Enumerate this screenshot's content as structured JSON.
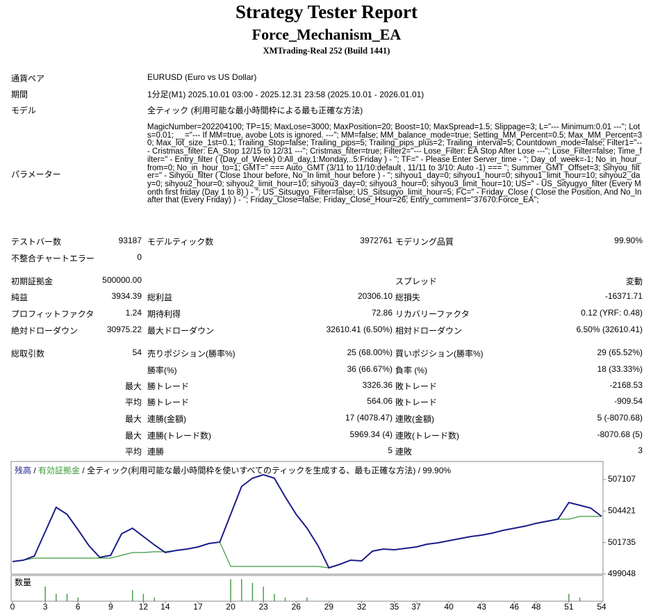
{
  "header": {
    "title": "Strategy Tester Report",
    "ea": "Force_Mechanism_EA",
    "server": "XMTrading-Real 252 (Build 1441)"
  },
  "info": [
    {
      "label": "通貨ペア",
      "value": "EURUSD (Euro vs US Dollar)"
    },
    {
      "label": "期間",
      "value": "1分足(M1) 2025.10.01 03:00 - 2025.12.31 23:58 (2025.10.01 - 2026.01.01)"
    },
    {
      "label": "モデル",
      "value": "全ティック (利用可能な最小時間枠による最も正確な方法)"
    }
  ],
  "parameters": {
    "label": "パラメーター",
    "value": "MagicNumber=202204100; TP=15; MaxLose=3000; MaxPosition=20; Boost=10; MaxSpread=1.5; Slippage=3; L=\"--- Minimum:0.01 ---\"; Lots=0.01; __=\"--- If MM=true, avobe Lots is ignored. ---\"; MM=false; MM_balance_mode=true; Setting_MM_Percent=0.5; Max_MM_Percent=30; Max_lot_size_1st=0.1; Trailing_Stop=false; Trailing_pips=5; Trailing_pips_plus=2; Trailing_interval=5; Countdown_mode=false; Filter1=\"--- Cristmas_filter: EA_Stop 12/15 to 12/31 ---\"; Cristmas_filter=true; Filter2=\"--- Lose_Filter: EA Stop After Lose ---\"; Lose_Filter=false; Time_filter=\" - Entry_filter ( (Day_of_Week) 0:All_day,1:Monday,..5:Friday ) - \"; TF=\" - Please Enter Server_time - \"; Day_of_week=-1; No_in_hour_from=0; No_in_hour_to=1; GMT=\" === Auto_GMT (3/11 to 11/10:default , 11/11 to 3/10: Auto -1) === \"; Summer_GMT_Offset=3; Sihyou_filter=\" - Sihyou_filter ( Close 1hour before, No_In limit_hour before ) - \"; sihyou1_day=0; sihyou1_hour=0; sihyou1_limit_hour=10; sihyou2_day=0; sihyou2_hour=0; sihyou2_limit_hour=10; sihyou3_day=0; sihyou3_hour=0; sihyou3_limit_hour=10; US=\" - US_Sityugyo_filter (Every Month first friday (Day 1 to 8) ) - \"; US_Sitsugyo_Filter=false; US_Sitsugyo_limit_hour=5; FC=\" - Friday_Close ( Close the Position, And No_In after that (Every Friday) ) - \"; Friday_Close=false; Friday_Close_Hour=26; Entry_comment=\"37670:Force_EA\";"
  },
  "stats": [
    [
      {
        "label": "テストバー数",
        "value": "93187"
      },
      {
        "label": "モデルティック数",
        "value": "3972761"
      },
      {
        "label": "モデリング品質",
        "value": "99.90%"
      }
    ],
    [
      {
        "label": "不整合チャートエラー",
        "value": "0"
      },
      null,
      null
    ],
    [
      {
        "label": "初期証拠金",
        "value": "500000.00"
      },
      null,
      {
        "label": "スプレッド",
        "value": "変動"
      }
    ],
    [
      {
        "label": "純益",
        "value": "3934.39"
      },
      {
        "label": "総利益",
        "value": "20306.10"
      },
      {
        "label": "総損失",
        "value": "-16371.71"
      }
    ],
    [
      {
        "label": "プロフィットファクタ",
        "value": "1.24"
      },
      {
        "label": "期待利得",
        "value": "72.86"
      },
      {
        "label": "リカバリーファクタ",
        "value": "0.12 (YRF: 0.48)"
      }
    ],
    [
      {
        "label": "絶対ドローダウン",
        "value": "30975.22"
      },
      {
        "label": "最大ドローダウン",
        "value": "32610.41 (6.50%)"
      },
      {
        "label": "相対ドローダウン",
        "value": "6.50% (32610.41)"
      }
    ],
    [
      {
        "label": "総取引数",
        "value": "54"
      },
      {
        "label": "売りポジション(勝率%)",
        "value": "25 (68.00%)"
      },
      {
        "label": "買いポジション(勝率%)",
        "value": "29 (65.52%)"
      }
    ],
    [
      null,
      {
        "label": "勝率(%)",
        "value": "36 (66.67%)"
      },
      {
        "label": "負率 (%)",
        "value": "18 (33.33%)"
      }
    ],
    [
      {
        "value": "最大"
      },
      {
        "label": "勝トレード",
        "value": "3326.36"
      },
      {
        "label": "敗トレード",
        "value": "-2168.53"
      }
    ],
    [
      {
        "value": "平均"
      },
      {
        "label": "勝トレード",
        "value": "564.06"
      },
      {
        "label": "敗トレード",
        "value": "-909.54"
      }
    ],
    [
      {
        "value": "最大"
      },
      {
        "label": "連勝(金額)",
        "value": "17 (4078.47)"
      },
      {
        "label": "連敗(金額)",
        "value": "5 (-8070.68)"
      }
    ],
    [
      {
        "value": "最大"
      },
      {
        "label": "連勝(トレード数)",
        "value": "5969.34 (4)"
      },
      {
        "label": "連敗(トレード数)",
        "value": "-8070.68 (5)"
      }
    ],
    [
      {
        "value": "平均"
      },
      {
        "label": "連勝",
        "value": "5"
      },
      {
        "label": "連敗",
        "value": "3"
      }
    ]
  ],
  "chart_data": {
    "type": "line",
    "separator": "/",
    "model": "全ティック(利用可能な最小時間枠を使いすべてのティックを生成する、最も正確な方法)",
    "quality": "99.90%",
    "x": [
      0,
      1,
      2,
      3,
      4,
      5,
      6,
      7,
      8,
      9,
      10,
      11,
      12,
      13,
      14,
      15,
      16,
      17,
      18,
      19,
      20,
      21,
      22,
      23,
      24,
      25,
      26,
      27,
      28,
      29,
      30,
      31,
      32,
      33,
      34,
      35,
      36,
      37,
      38,
      39,
      40,
      41,
      42,
      43,
      44,
      45,
      46,
      47,
      48,
      49,
      50,
      51,
      52,
      53,
      54
    ],
    "xlim": [
      0,
      54
    ],
    "xticks": [
      0,
      3,
      6,
      9,
      12,
      14,
      17,
      20,
      23,
      26,
      29,
      32,
      35,
      37,
      40,
      43,
      46,
      48,
      51,
      54
    ],
    "ylim": [
      499048,
      508648
    ],
    "yticks": [
      499048,
      501735,
      504421,
      507107
    ],
    "series": [
      {
        "name": "残高",
        "color": "#1c1c8a",
        "values": [
          500115,
          500233,
          500589,
          502663,
          504737,
          504144,
          502841,
          501478,
          500470,
          500648,
          502485,
          502959,
          502248,
          501537,
          500885,
          501063,
          501182,
          501359,
          501655,
          501774,
          504144,
          506515,
          507226,
          507522,
          507226,
          505626,
          504144,
          502959,
          501478,
          499581,
          499878,
          500233,
          500174,
          501004,
          501182,
          501122,
          501241,
          501359,
          501596,
          501715,
          501892,
          502070,
          502248,
          502367,
          502544,
          502781,
          502959,
          503137,
          503374,
          503552,
          503730,
          505152,
          504915,
          504678,
          503967
        ]
      },
      {
        "name": "有効証拠金",
        "color": "#3a9a3a",
        "values": [
          500115,
          500233,
          500410,
          500410,
          500410,
          500410,
          500410,
          500410,
          500410,
          500410,
          500648,
          500885,
          500885,
          500950,
          500950,
          501063,
          501182,
          501359,
          501655,
          501774,
          499700,
          499700,
          499700,
          499700,
          499700,
          499700,
          499700,
          499700,
          499700,
          499581,
          499878,
          500233,
          500174,
          501004,
          501182,
          501122,
          501241,
          501359,
          501596,
          501715,
          501892,
          502070,
          502248,
          502367,
          502544,
          502781,
          502959,
          503137,
          503374,
          503552,
          503730,
          503730,
          503967,
          503967,
          503967
        ]
      }
    ],
    "volume": {
      "name": "数量",
      "color": "#3a9a3a",
      "ylim": [
        0,
        7
      ],
      "values": [
        0,
        0,
        0,
        4,
        2,
        2,
        1,
        0,
        0,
        0,
        0,
        3,
        2,
        1,
        0,
        0,
        0,
        0,
        0,
        0,
        6,
        6,
        5,
        4,
        2,
        1,
        0,
        1,
        0,
        0,
        0,
        0,
        0,
        0,
        0,
        0,
        0,
        0,
        0,
        0,
        0,
        0,
        0,
        0,
        0,
        0,
        0,
        0,
        0,
        0,
        0,
        2,
        1,
        0,
        0
      ]
    }
  }
}
